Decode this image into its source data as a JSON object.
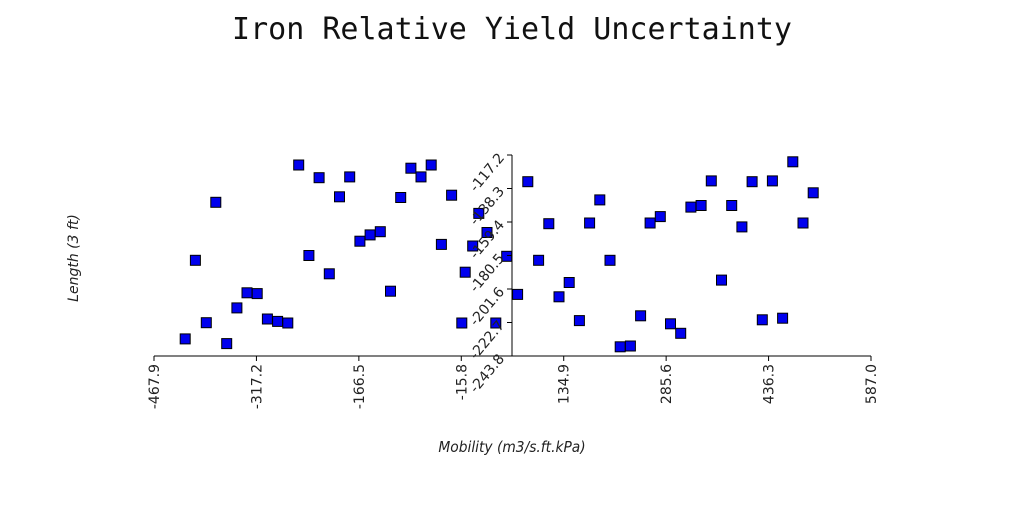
{
  "chart_data": {
    "type": "scatter",
    "title": "Iron Relative Yield Uncertainty",
    "xlabel": "Mobility (m3/s.ft.kPa)",
    "ylabel": "Length (3 ft)",
    "xlim": [
      -467.9,
      587.0
    ],
    "ylim": [
      -243.8,
      -117.2
    ],
    "xticks": [
      "-467.9",
      "-317.2",
      "-166.5",
      "-15.8",
      "134.9",
      "285.6",
      "436.3",
      "587.0"
    ],
    "yticks": [
      "-243.8",
      "-222.7",
      "-201.6",
      "-180.5",
      "-159.4",
      "-138.3",
      "-117.2"
    ],
    "grid": false,
    "marker": "square",
    "colors": {
      "marker_fill": "#0000ee",
      "marker_edge": "#000000",
      "axis": "#000000"
    },
    "series": [
      {
        "points": [
          [
            -422,
            -233.0
          ],
          [
            -407,
            -183.5
          ],
          [
            -391,
            -222.8
          ],
          [
            -377,
            -147.0
          ],
          [
            -361,
            -236.0
          ],
          [
            -346,
            -213.5
          ],
          [
            -331,
            -204.0
          ],
          [
            -316,
            -204.5
          ],
          [
            -301,
            -220.5
          ],
          [
            -286,
            -222.0
          ],
          [
            -271,
            -223.0
          ],
          [
            -255,
            -123.5
          ],
          [
            -240,
            -180.5
          ],
          [
            -225,
            -131.5
          ],
          [
            -210,
            -192.0
          ],
          [
            -195,
            -143.5
          ],
          [
            -180,
            -131.0
          ],
          [
            -165,
            -171.5
          ],
          [
            -150,
            -167.5
          ],
          [
            -135,
            -165.5
          ],
          [
            -120,
            -203.0
          ],
          [
            -105,
            -144.0
          ],
          [
            -90,
            -125.5
          ],
          [
            -75,
            -131.0
          ],
          [
            -60,
            -123.5
          ],
          [
            -45,
            -173.5
          ],
          [
            -30,
            -142.5
          ],
          [
            -15,
            -223.0
          ],
          [
            -10,
            -191.0
          ],
          [
            1,
            -174.5
          ],
          [
            10,
            -154.0
          ],
          [
            22,
            -166.0
          ],
          [
            35,
            -223.0
          ],
          [
            51,
            -181.0
          ],
          [
            67,
            -205.0
          ],
          [
            82,
            -134.0
          ],
          [
            98,
            -183.5
          ],
          [
            113,
            -160.5
          ],
          [
            128,
            -206.5
          ],
          [
            143,
            -197.5
          ],
          [
            158,
            -221.5
          ],
          [
            173,
            -160.0
          ],
          [
            188,
            -145.5
          ],
          [
            203,
            -183.5
          ],
          [
            218,
            -238.0
          ],
          [
            233,
            -237.5
          ],
          [
            248,
            -218.5
          ],
          [
            262,
            -160.0
          ],
          [
            277,
            -156.0
          ],
          [
            292,
            -223.5
          ],
          [
            307,
            -229.5
          ],
          [
            322,
            -150.0
          ],
          [
            337,
            -149.0
          ],
          [
            352,
            -133.5
          ],
          [
            367,
            -196.0
          ],
          [
            382,
            -149.0
          ],
          [
            397,
            -162.5
          ],
          [
            412,
            -134.0
          ],
          [
            427,
            -221.0
          ],
          [
            442,
            -133.5
          ],
          [
            457,
            -220.0
          ],
          [
            472,
            -121.5
          ],
          [
            487,
            -160.0
          ],
          [
            502,
            -141.0
          ]
        ]
      }
    ]
  }
}
